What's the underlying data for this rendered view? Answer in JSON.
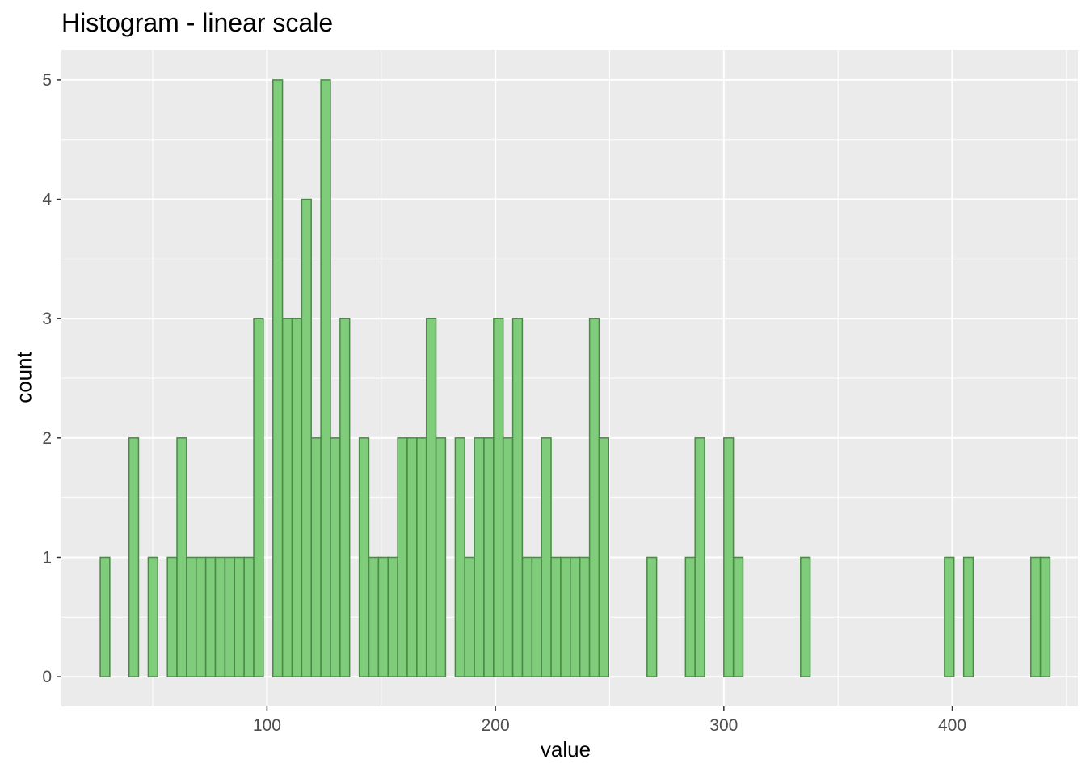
{
  "chart_data": {
    "type": "bar",
    "title": "Histogram - linear scale",
    "xlabel": "value",
    "ylabel": "count",
    "xlim": [
      10,
      455
    ],
    "ylim": [
      -0.25,
      5.25
    ],
    "x_breaks": [
      100,
      200,
      300,
      400
    ],
    "y_breaks": [
      0,
      1,
      2,
      3,
      4,
      5
    ],
    "bin_width": 4.17,
    "bins": {
      "start": [
        27,
        31.2,
        35.4,
        39.6,
        43.8,
        48,
        52.2,
        56.4,
        60.6,
        64.8,
        69,
        73.2,
        77.4,
        81.6,
        85.8,
        90,
        94.2,
        98.4,
        102.6,
        106.8,
        111,
        115.2,
        119.4,
        123.6,
        127.8,
        132,
        136.2,
        140.4,
        144.6,
        148.8,
        153,
        157.2,
        161.4,
        165.6,
        169.8,
        174,
        178.2,
        182.4,
        186.6,
        190.8,
        195,
        199.2,
        203.4,
        207.6,
        211.8,
        216,
        220.2,
        224.4,
        228.6,
        232.8,
        237,
        241.2,
        245.4,
        249.6,
        253.8,
        258,
        262.2,
        266.4,
        270.6,
        274.8,
        279,
        283.2,
        287.4,
        291.6,
        295.8,
        300,
        304.2,
        308.4,
        312.6,
        316.8,
        321,
        325.2,
        329.4,
        333.6,
        337.8,
        342,
        346.2,
        350.4,
        354.6,
        358.8,
        363,
        367.2,
        371.4,
        375.6,
        379.8,
        384,
        388.2,
        392.4,
        396.6,
        400.8,
        405,
        409.2,
        413.4,
        417.6,
        421.8,
        426,
        430.2,
        434.4,
        438.6
      ],
      "count": [
        1,
        0,
        0,
        2,
        0,
        1,
        0,
        1,
        2,
        1,
        1,
        1,
        1,
        1,
        1,
        1,
        3,
        0,
        5,
        3,
        3,
        4,
        2,
        5,
        2,
        3,
        0,
        2,
        1,
        1,
        1,
        2,
        2,
        2,
        3,
        2,
        0,
        2,
        1,
        2,
        2,
        3,
        2,
        3,
        1,
        1,
        2,
        1,
        1,
        1,
        1,
        3,
        2,
        0,
        0,
        0,
        0,
        1,
        0,
        0,
        0,
        1,
        2,
        0,
        0,
        2,
        1,
        0,
        0,
        0,
        0,
        0,
        0,
        1,
        0,
        0,
        0,
        0,
        0,
        0,
        0,
        0,
        0,
        0,
        0,
        0,
        0,
        0,
        1,
        0,
        1,
        0,
        0,
        0,
        0,
        0,
        0,
        1,
        1
      ]
    },
    "fill": "#7fcc7a",
    "stroke": "#4a8a46",
    "panel_background": "#ebebeb",
    "grid_color": "#ffffff"
  }
}
